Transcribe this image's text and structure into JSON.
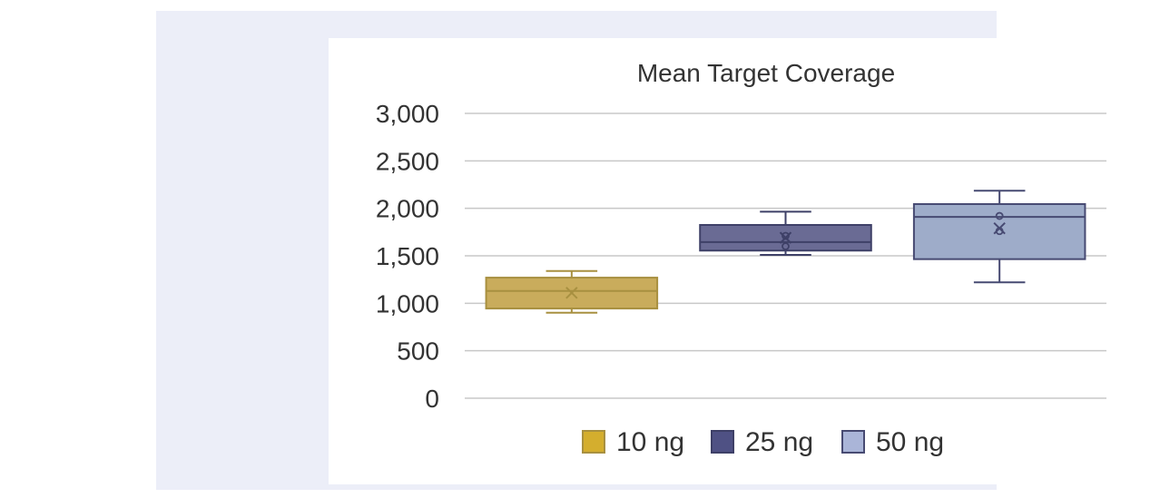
{
  "chart_data": {
    "type": "box",
    "title": "Mean Target Coverage",
    "ylim": [
      0,
      3000
    ],
    "yticks": [
      {
        "value": 0,
        "label": "0"
      },
      {
        "value": 500,
        "label": "500"
      },
      {
        "value": 1000,
        "label": "1,000"
      },
      {
        "value": 1500,
        "label": "1,500"
      },
      {
        "value": 2000,
        "label": "2,000"
      },
      {
        "value": 2500,
        "label": "2,500"
      },
      {
        "value": 3000,
        "label": "3,000"
      }
    ],
    "grid": true,
    "legend_position": "bottom",
    "series": [
      {
        "name": "10 ng",
        "fill": "#c9ac5c",
        "legend_fill": "#d4ae2e",
        "stroke": "#a89040",
        "marker": "#a89040",
        "min": 900,
        "q1": 945,
        "median": 1130,
        "q3": 1270,
        "max": 1340,
        "mean": 1110,
        "points": []
      },
      {
        "name": "25 ng",
        "fill": "#6a6b94",
        "legend_fill": "#4f5184",
        "stroke": "#3e4067",
        "marker": "#3e4067",
        "min": 1510,
        "q1": 1555,
        "median": 1645,
        "q3": 1825,
        "max": 1965,
        "mean": 1690,
        "points": [
          1600,
          1710
        ]
      },
      {
        "name": "50 ng",
        "fill": "#9eacc9",
        "legend_fill": "#aab5d8",
        "stroke": "#474a72",
        "marker": "#474a72",
        "min": 1220,
        "q1": 1465,
        "median": 1910,
        "q3": 2045,
        "max": 2185,
        "mean": 1790,
        "points": [
          1920,
          1760
        ]
      }
    ]
  }
}
